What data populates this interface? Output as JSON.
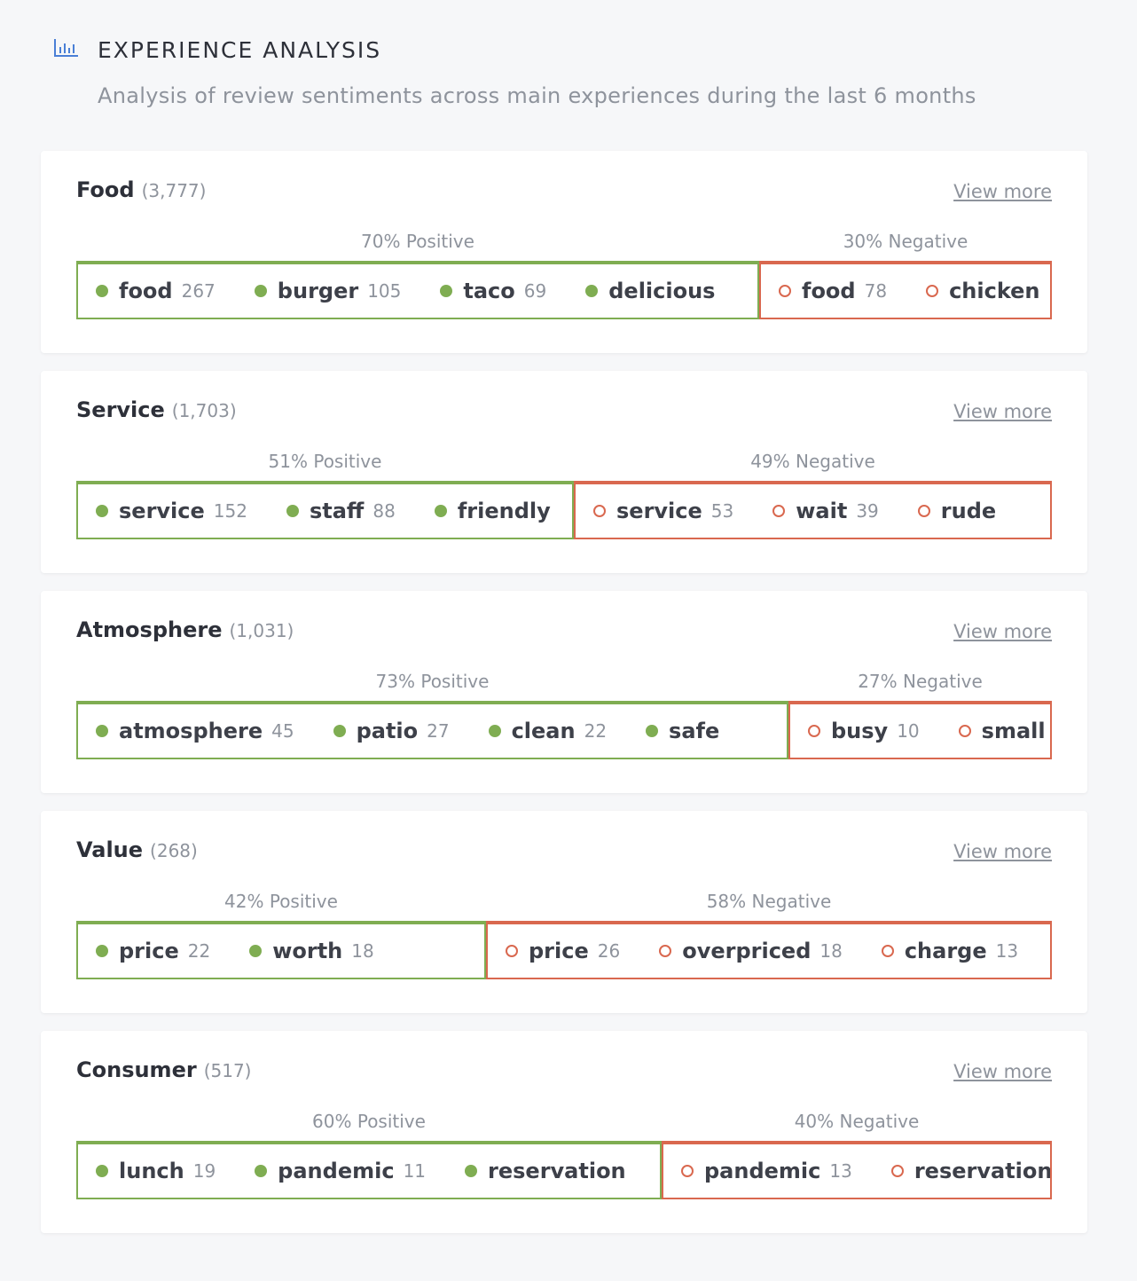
{
  "header": {
    "title": "EXPERIENCE ANALYSIS",
    "subtitle": "Analysis of review sentiments across main experiences during the last 6 months"
  },
  "sections": [
    {
      "name": "Food",
      "count": "(3,777)",
      "link": "View more",
      "positive": {
        "value": 70,
        "label": "70% Positive",
        "keywords": [
          {
            "word": "food",
            "count": 267
          },
          {
            "word": "burger",
            "count": 105
          },
          {
            "word": "taco",
            "count": 69
          },
          {
            "word": "delicious"
          }
        ]
      },
      "negative": {
        "value": 30,
        "label": "30% Negative",
        "keywords": [
          {
            "word": "food",
            "count": 78
          },
          {
            "word": "chicken"
          }
        ]
      }
    },
    {
      "name": "Service",
      "count": "(1,703)",
      "link": "View more",
      "positive": {
        "value": 51,
        "label": "51% Positive",
        "keywords": [
          {
            "word": "service",
            "count": 152
          },
          {
            "word": "staff",
            "count": 88
          },
          {
            "word": "friendly"
          }
        ]
      },
      "negative": {
        "value": 49,
        "label": "49% Negative",
        "keywords": [
          {
            "word": "service",
            "count": 53
          },
          {
            "word": "wait",
            "count": 39
          },
          {
            "word": "rude"
          }
        ]
      }
    },
    {
      "name": "Atmosphere",
      "count": "(1,031)",
      "link": "View more",
      "positive": {
        "value": 73,
        "label": "73% Positive",
        "keywords": [
          {
            "word": "atmosphere",
            "count": 45
          },
          {
            "word": "patio",
            "count": 27
          },
          {
            "word": "clean",
            "count": 22
          },
          {
            "word": "safe"
          }
        ]
      },
      "negative": {
        "value": 27,
        "label": "27% Negative",
        "keywords": [
          {
            "word": "busy",
            "count": 10
          },
          {
            "word": "small"
          }
        ]
      }
    },
    {
      "name": "Value",
      "count": "(268)",
      "link": "View more",
      "positive": {
        "value": 42,
        "label": "42% Positive",
        "keywords": [
          {
            "word": "price",
            "count": 22
          },
          {
            "word": "worth",
            "count": 18
          }
        ]
      },
      "negative": {
        "value": 58,
        "label": "58% Negative",
        "keywords": [
          {
            "word": "price",
            "count": 26
          },
          {
            "word": "overpriced",
            "count": 18
          },
          {
            "word": "charge",
            "count": 13
          }
        ]
      }
    },
    {
      "name": "Consumer",
      "count": "(517)",
      "link": "View more",
      "positive": {
        "value": 60,
        "label": "60% Positive",
        "keywords": [
          {
            "word": "lunch",
            "count": 19
          },
          {
            "word": "pandemic",
            "count": 11
          },
          {
            "word": "reservation"
          }
        ]
      },
      "negative": {
        "value": 40,
        "label": "40% Negative",
        "keywords": [
          {
            "word": "pandemic",
            "count": 13
          },
          {
            "word": "reservation"
          }
        ]
      }
    }
  ]
}
